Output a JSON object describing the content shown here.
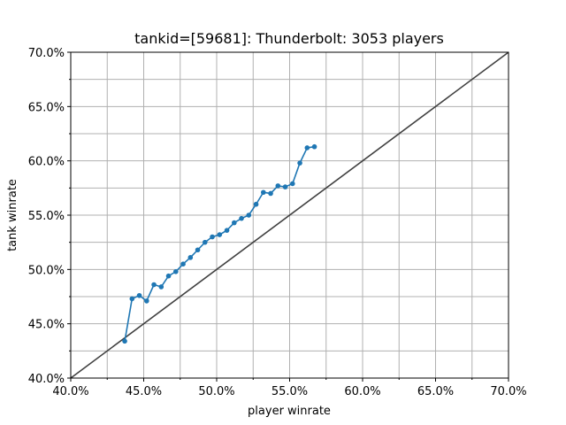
{
  "chart_data": {
    "type": "line",
    "title": "tankid=[59681]: Thunderbolt: 3053 players",
    "xlabel": "player winrate",
    "ylabel": "tank winrate",
    "xlim": [
      0.4,
      0.7
    ],
    "ylim": [
      0.4,
      0.7
    ],
    "grid": true,
    "xticks": [
      {
        "value": 0.4,
        "label": "40.0%"
      },
      {
        "value": 0.45,
        "label": "45.0%"
      },
      {
        "value": 0.5,
        "label": "50.0%"
      },
      {
        "value": 0.55,
        "label": "55.0%"
      },
      {
        "value": 0.6,
        "label": "60.0%"
      },
      {
        "value": 0.65,
        "label": "65.0%"
      },
      {
        "value": 0.7,
        "label": "70.0%"
      }
    ],
    "yticks": [
      {
        "value": 0.4,
        "label": "40.0%"
      },
      {
        "value": 0.45,
        "label": "45.0%"
      },
      {
        "value": 0.5,
        "label": "50.0%"
      },
      {
        "value": 0.55,
        "label": "55.0%"
      },
      {
        "value": 0.6,
        "label": "60.0%"
      },
      {
        "value": 0.65,
        "label": "65.0%"
      },
      {
        "value": 0.7,
        "label": "70.0%"
      }
    ],
    "reference_line": {
      "x": [
        0.4,
        0.7
      ],
      "y": [
        0.4,
        0.7
      ],
      "color": "#404040"
    },
    "series": [
      {
        "color": "#1f77b4",
        "x": [
          0.437,
          0.442,
          0.447,
          0.452,
          0.457,
          0.462,
          0.467,
          0.472,
          0.477,
          0.482,
          0.487,
          0.492,
          0.497,
          0.502,
          0.507,
          0.512,
          0.517,
          0.522,
          0.527,
          0.532,
          0.537,
          0.542,
          0.547,
          0.552,
          0.557,
          0.562,
          0.567
        ],
        "y": [
          0.434,
          0.473,
          0.476,
          0.471,
          0.486,
          0.484,
          0.494,
          0.498,
          0.505,
          0.511,
          0.518,
          0.525,
          0.53,
          0.532,
          0.536,
          0.543,
          0.547,
          0.55,
          0.56,
          0.571,
          0.57,
          0.577,
          0.576,
          0.579,
          0.598,
          0.612,
          0.613
        ]
      }
    ]
  }
}
